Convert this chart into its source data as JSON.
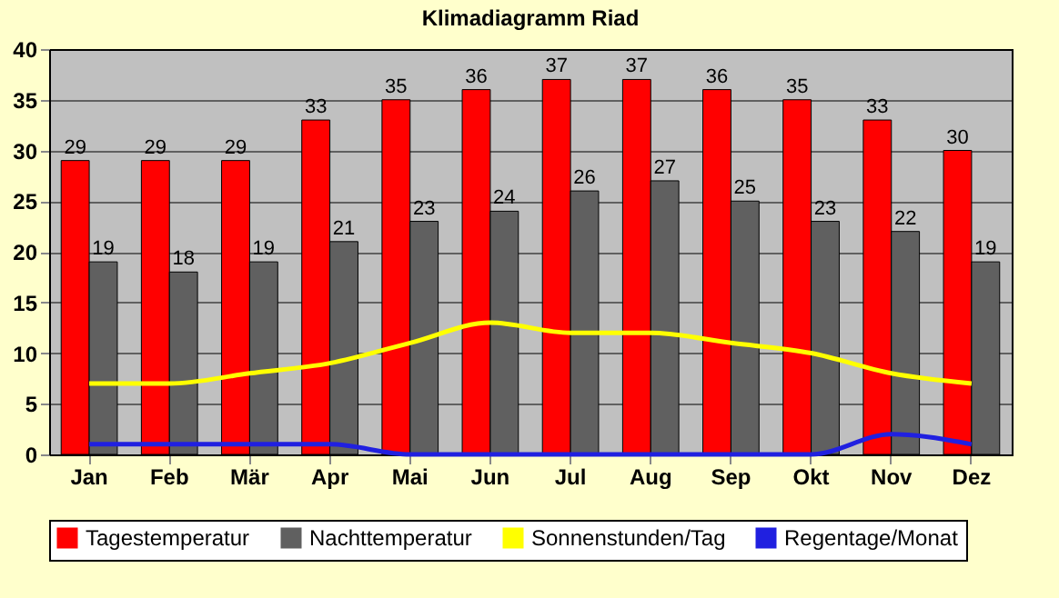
{
  "chart_data": {
    "type": "bar",
    "title": "Klimadiagramm Riad",
    "categories": [
      "Jan",
      "Feb",
      "Mär",
      "Apr",
      "Mai",
      "Jun",
      "Jul",
      "Aug",
      "Sep",
      "Okt",
      "Nov",
      "Dez"
    ],
    "series": [
      {
        "name": "Tagestemperatur",
        "color": "#ff0000",
        "values": [
          29,
          29,
          29,
          33,
          35,
          36,
          37,
          37,
          36,
          35,
          33,
          30
        ],
        "value_labels": [
          "29",
          "29",
          "29",
          "33",
          "35",
          "36",
          "37",
          "37",
          "36",
          "35",
          "33",
          "30"
        ]
      },
      {
        "name": "Nachttemperatur",
        "color": "#606060",
        "values": [
          19,
          18,
          19,
          21,
          23,
          24,
          26,
          27,
          25,
          23,
          22,
          19
        ],
        "value_labels": [
          "19",
          "18",
          "19",
          "21",
          "23",
          "24",
          "26",
          "27",
          "25",
          "23",
          "22",
          "19"
        ]
      },
      {
        "name": "Sonnenstunden/Tag",
        "type": "line",
        "color": "#ffff00",
        "values": [
          7,
          7,
          8,
          9,
          11,
          13,
          12,
          12,
          11,
          10,
          8,
          7
        ]
      },
      {
        "name": "Regentage/Monat",
        "type": "line",
        "color": "#2020e0",
        "values": [
          1,
          1,
          1,
          1,
          0,
          0,
          0,
          0,
          0,
          0,
          2,
          1
        ]
      }
    ],
    "ylim": [
      0,
      40
    ],
    "yticks": [
      0,
      5,
      10,
      15,
      20,
      25,
      30,
      35,
      40
    ],
    "grid": "y",
    "legend": "bottom",
    "marker": "none",
    "line_style": "solid"
  }
}
